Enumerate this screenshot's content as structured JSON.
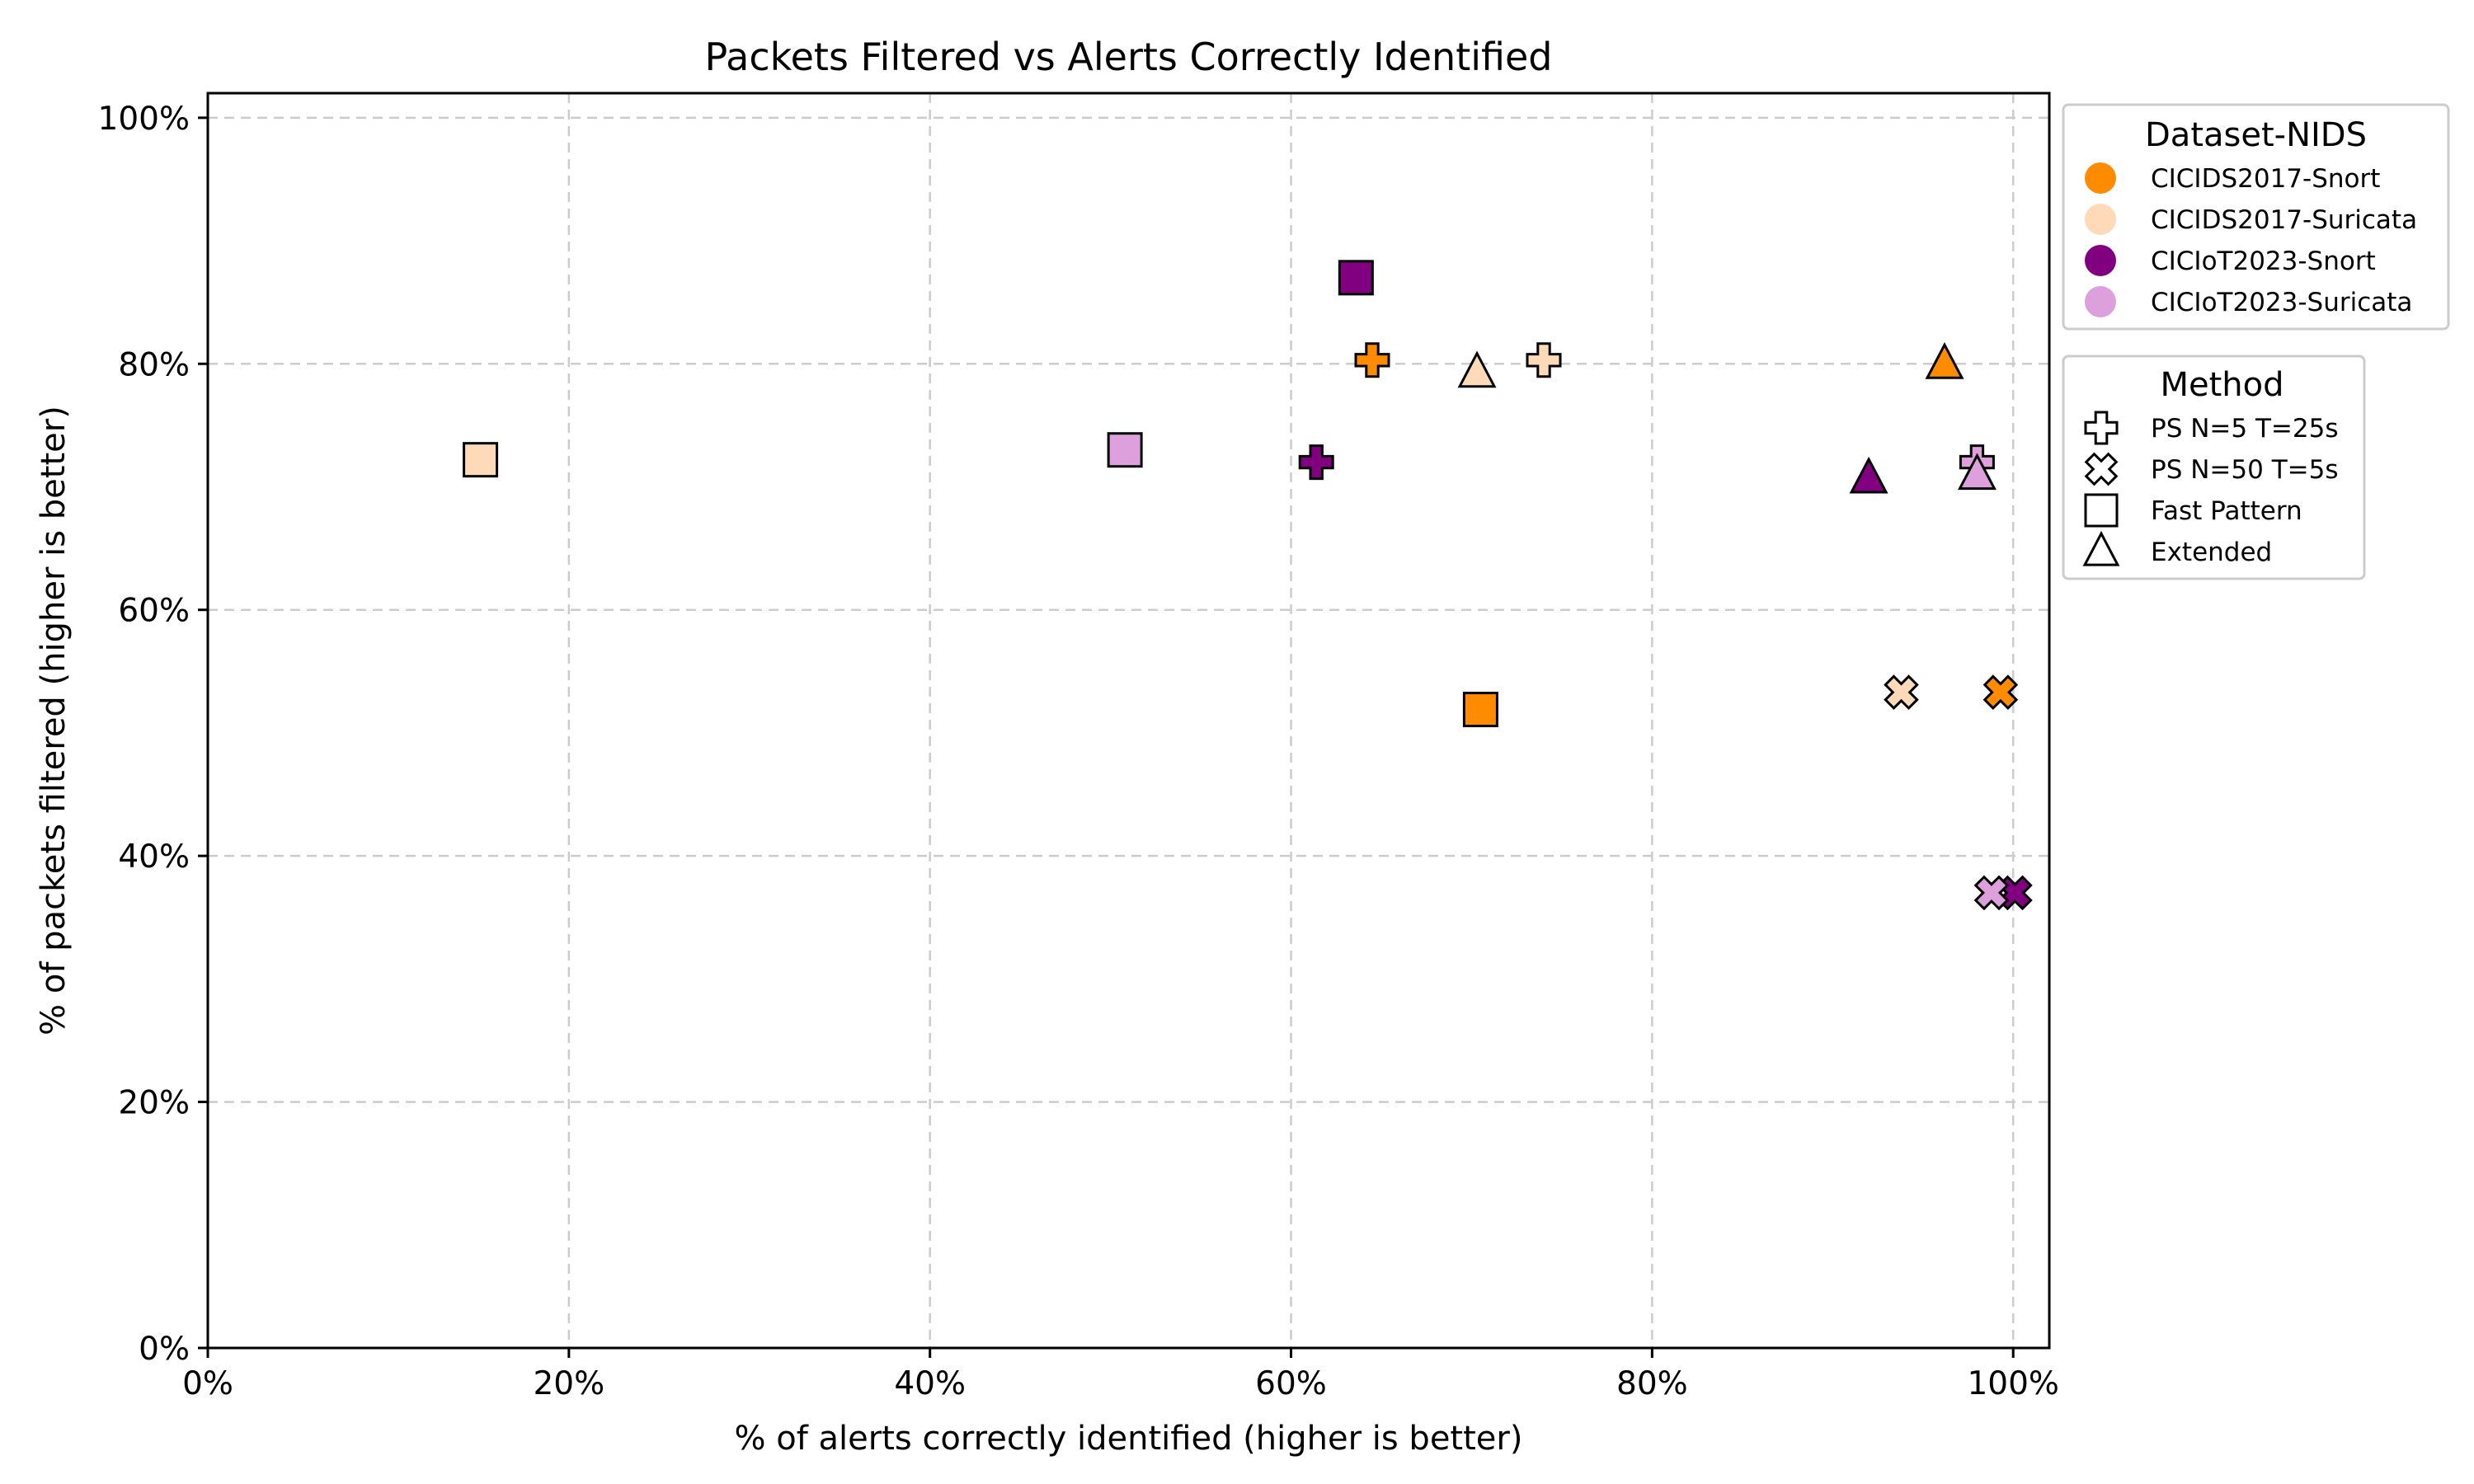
{
  "chart_data": {
    "type": "scatter",
    "title": "Packets Filtered vs Alerts Correctly Identified",
    "xlabel": "% of alerts correctly identified (higher is better)",
    "ylabel": "% of packets filtered (higher is better)",
    "xlim": [
      0,
      102
    ],
    "ylim": [
      0,
      102
    ],
    "xticks": [
      {
        "value": 0,
        "label": "0%"
      },
      {
        "value": 20,
        "label": "20%"
      },
      {
        "value": 40,
        "label": "40%"
      },
      {
        "value": 60,
        "label": "60%"
      },
      {
        "value": 80,
        "label": "80%"
      },
      {
        "value": 100,
        "label": "100%"
      }
    ],
    "yticks": [
      {
        "value": 0,
        "label": "0%"
      },
      {
        "value": 20,
        "label": "20%"
      },
      {
        "value": 40,
        "label": "40%"
      },
      {
        "value": 60,
        "label": "60%"
      },
      {
        "value": 80,
        "label": "80%"
      },
      {
        "value": 100,
        "label": "100%"
      }
    ],
    "grid": true,
    "legend_placement": "outside-right",
    "legends": {
      "dataset": {
        "title": "Dataset-NIDS",
        "entries": [
          {
            "label": "CICIDS2017-Snort",
            "color": "#ff8c00"
          },
          {
            "label": "CICIDS2017-Suricata",
            "color": "#ffdab9"
          },
          {
            "label": "CICIoT2023-Snort",
            "color": "#800080"
          },
          {
            "label": "CICIoT2023-Suricata",
            "color": "#dda0dd"
          }
        ]
      },
      "method": {
        "title": "Method",
        "entries": [
          {
            "label": "PS N=5 T=25s",
            "marker": "plus"
          },
          {
            "label": "PS N=50 T=5s",
            "marker": "x"
          },
          {
            "label": "Fast Pattern",
            "marker": "square"
          },
          {
            "label": "Extended",
            "marker": "triangle"
          }
        ]
      }
    },
    "series": [
      {
        "dataset": "CICIDS2017-Snort",
        "color": "#ff8c00",
        "points": [
          {
            "method": "PS N=5 T=25s",
            "marker": "plus",
            "x": 64.5,
            "y": 80.3
          },
          {
            "method": "PS N=50 T=5s",
            "marker": "x",
            "x": 99.3,
            "y": 53.3
          },
          {
            "method": "Fast Pattern",
            "marker": "square",
            "x": 70.5,
            "y": 51.9
          },
          {
            "method": "Extended",
            "marker": "triangle",
            "x": 96.2,
            "y": 80.0
          }
        ]
      },
      {
        "dataset": "CICIDS2017-Suricata",
        "color": "#ffdab9",
        "points": [
          {
            "method": "PS N=5 T=25s",
            "marker": "plus",
            "x": 74.0,
            "y": 80.3
          },
          {
            "method": "PS N=50 T=5s",
            "marker": "x",
            "x": 93.8,
            "y": 53.3
          },
          {
            "method": "Fast Pattern",
            "marker": "square",
            "x": 15.1,
            "y": 72.2
          },
          {
            "method": "Extended",
            "marker": "triangle",
            "x": 70.3,
            "y": 79.3
          }
        ]
      },
      {
        "dataset": "CICIoT2023-Snort",
        "color": "#800080",
        "points": [
          {
            "method": "PS N=5 T=25s",
            "marker": "plus",
            "x": 61.4,
            "y": 72.0
          },
          {
            "method": "PS N=50 T=5s",
            "marker": "x",
            "x": 100.1,
            "y": 37.0
          },
          {
            "method": "Fast Pattern",
            "marker": "square",
            "x": 63.6,
            "y": 87.0
          },
          {
            "method": "Extended",
            "marker": "triangle",
            "x": 92.0,
            "y": 70.7
          }
        ]
      },
      {
        "dataset": "CICIoT2023-Suricata",
        "color": "#dda0dd",
        "points": [
          {
            "method": "PS N=5 T=25s",
            "marker": "plus",
            "x": 98.0,
            "y": 72.0
          },
          {
            "method": "PS N=50 T=5s",
            "marker": "x",
            "x": 98.8,
            "y": 37.0
          },
          {
            "method": "Fast Pattern",
            "marker": "square",
            "x": 50.8,
            "y": 73.0
          },
          {
            "method": "Extended",
            "marker": "triangle",
            "x": 98.0,
            "y": 71.0
          }
        ]
      }
    ]
  }
}
